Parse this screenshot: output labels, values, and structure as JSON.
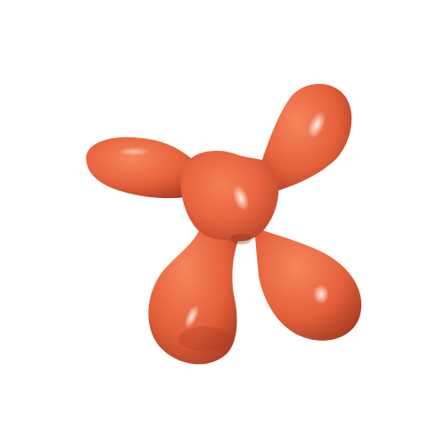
{
  "scene": {
    "subject": "orange-blob-shape",
    "colors": {
      "background": "#ffffff",
      "body": "#e8643f",
      "highlight": "#ffe7dc",
      "shadow": "#9e351c"
    }
  }
}
